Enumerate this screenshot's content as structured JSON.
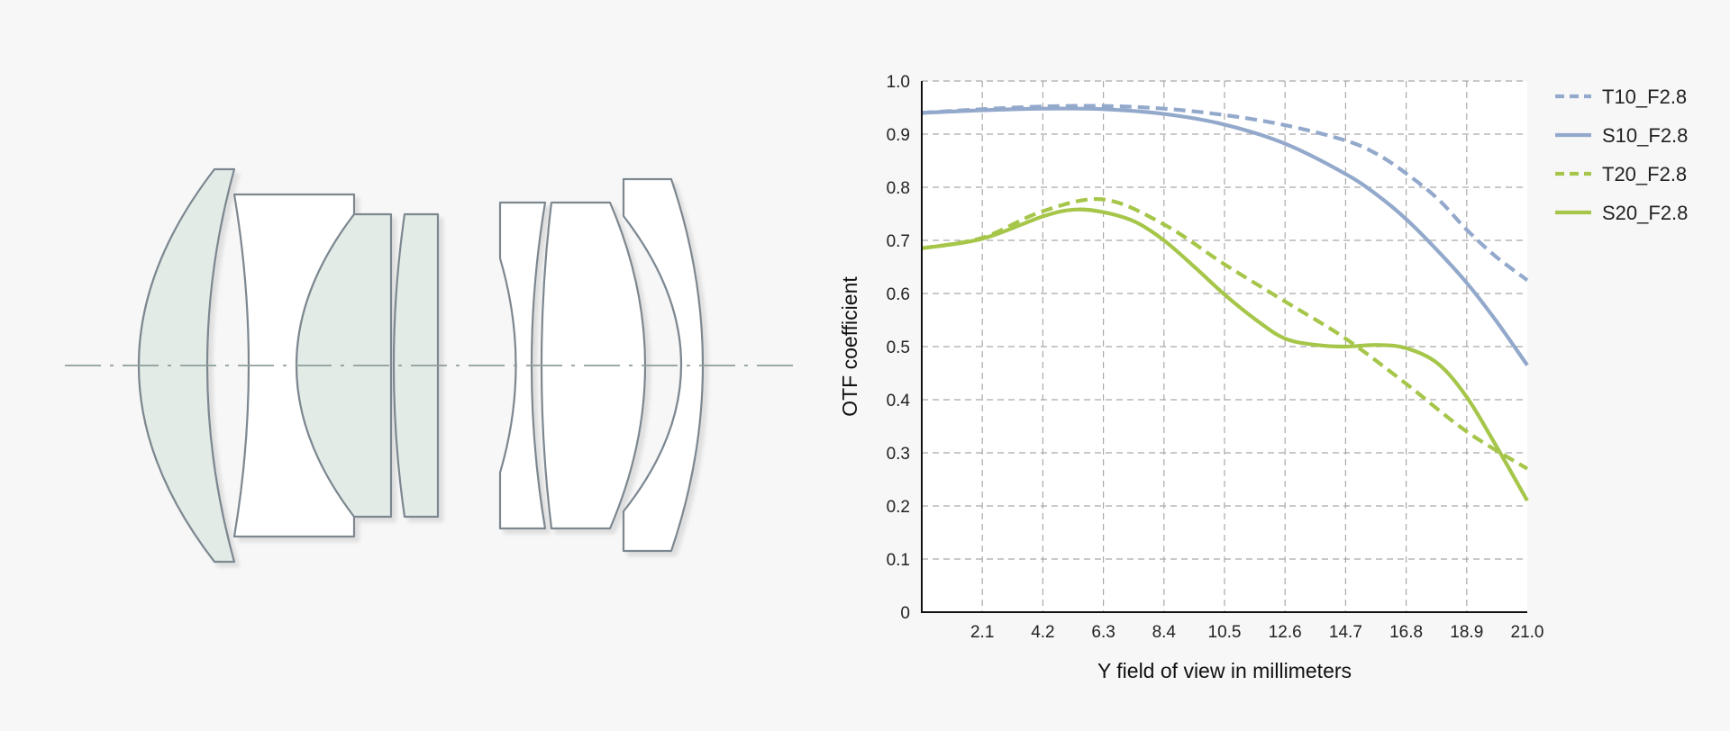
{
  "colors": {
    "background": "#f7f7f7",
    "plot_area": "#ffffff",
    "blue_series": "#93a9cc",
    "green_series": "#a6c64a",
    "lens_fill": "#e3ebe7",
    "lens_outline": "#7b8790",
    "optical_axis": "#8e9e9a"
  },
  "chart_data": {
    "type": "line",
    "xlabel": "Y field of view in millimeters",
    "ylabel": "OTF coefficient",
    "xlim": [
      0,
      21.0
    ],
    "ylim": [
      0,
      1.0
    ],
    "x_ticks": [
      "2.1",
      "4.2",
      "6.3",
      "8.4",
      "10.5",
      "12.6",
      "14.7",
      "16.8",
      "18.9",
      "21.0"
    ],
    "y_ticks": [
      "0",
      "0.1",
      "0.2",
      "0.3",
      "0.4",
      "0.5",
      "0.6",
      "0.7",
      "0.8",
      "0.9",
      "1.0"
    ],
    "grid": true,
    "legend_position": "top-right",
    "series": [
      {
        "name": "T10_F2.8",
        "style": "dashed",
        "color": "#93a9cc",
        "x": [
          0,
          2.1,
          4.2,
          6.3,
          8.4,
          10.5,
          12.6,
          14.7,
          15.8,
          16.8,
          17.9,
          18.9,
          19.9,
          21.0
        ],
        "y": [
          0.94,
          0.947,
          0.952,
          0.953,
          0.948,
          0.936,
          0.917,
          0.888,
          0.862,
          0.826,
          0.778,
          0.72,
          0.67,
          0.625
        ]
      },
      {
        "name": "S10_F2.8",
        "style": "solid",
        "color": "#93a9cc",
        "x": [
          0,
          2.1,
          4.2,
          6.3,
          8.4,
          10.5,
          12.6,
          14.7,
          15.8,
          16.8,
          17.9,
          18.9,
          19.9,
          21.0
        ],
        "y": [
          0.94,
          0.945,
          0.948,
          0.947,
          0.938,
          0.918,
          0.882,
          0.825,
          0.785,
          0.74,
          0.68,
          0.62,
          0.55,
          0.465
        ]
      },
      {
        "name": "T20_F2.8",
        "style": "dashed",
        "color": "#a6c64a",
        "x": [
          0,
          2.1,
          4.2,
          6.3,
          8.4,
          10.5,
          12.6,
          14.7,
          16.8,
          18.9,
          21.0
        ],
        "y": [
          0.685,
          0.705,
          0.755,
          0.777,
          0.73,
          0.655,
          0.585,
          0.515,
          0.43,
          0.34,
          0.27
        ]
      },
      {
        "name": "S20_F2.8",
        "style": "solid",
        "color": "#a6c64a",
        "x": [
          0,
          2.1,
          4.2,
          5.3,
          6.3,
          7.4,
          8.4,
          9.5,
          10.5,
          11.6,
          12.6,
          13.7,
          14.7,
          15.8,
          16.8,
          17.9,
          18.9,
          19.9,
          21.0
        ],
        "y": [
          0.685,
          0.703,
          0.745,
          0.758,
          0.753,
          0.735,
          0.7,
          0.648,
          0.598,
          0.55,
          0.515,
          0.503,
          0.5,
          0.503,
          0.497,
          0.468,
          0.405,
          0.315,
          0.21
        ]
      }
    ]
  }
}
